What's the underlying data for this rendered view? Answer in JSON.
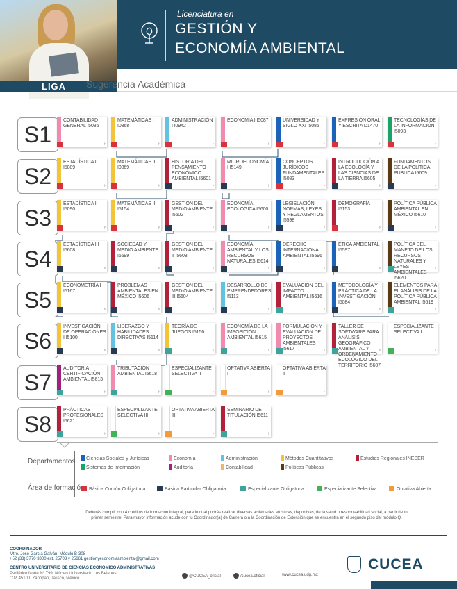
{
  "header": {
    "liga": "LIGA",
    "title_small": "Licenciatura en",
    "title_line1": "GESTIÓN Y",
    "title_line2": "ECONOMÍA AMBIENTAL",
    "subtitle": "Sugerencia Académica"
  },
  "colors": {
    "header_bg": "#1e4a63",
    "ciencias_sociales": "#1a63b8",
    "economia": "#f28ab0",
    "administracion": "#62c2e2",
    "metodos": "#f3c43a",
    "estudios_regionales": "#b3203a",
    "sistemas": "#1aa46a",
    "auditoria": "#a0207e",
    "contabilidad": "#f0b46a",
    "politicas": "#5a3a14",
    "basica_comun": "#d6333d",
    "basica_particular": "#273a52",
    "especializante_obligatoria": "#3ea39a",
    "especializante_selectiva": "#43b05a",
    "optativa": "#f19b3a"
  },
  "semesters": [
    "S1",
    "S2",
    "S3",
    "S4",
    "S5",
    "S6",
    "S7",
    "S8"
  ],
  "courses": [
    {
      "row": 0,
      "col": 0,
      "text": "CONTABILIDAD GENERAL I5086",
      "strip": "#f28ab0",
      "foot": "#d6333d"
    },
    {
      "row": 0,
      "col": 1,
      "text": "MATEMÁTICAS I I0868",
      "strip": "#f3c43a",
      "foot": "#d6333d"
    },
    {
      "row": 0,
      "col": 2,
      "text": "ADMINISTRACIÓN I I0942",
      "strip": "#62c2e2",
      "foot": "#d6333d"
    },
    {
      "row": 0,
      "col": 3,
      "text": "ECONOMÍA I I5087",
      "strip": "#f28ab0",
      "foot": "#d6333d"
    },
    {
      "row": 0,
      "col": 4,
      "text": "UNIVERSIDAD Y SIGLO XXI I5085",
      "strip": "#1a63b8",
      "foot": "#d6333d"
    },
    {
      "row": 0,
      "col": 5,
      "text": "EXPRESIÓN ORAL Y ESCRITA D1470",
      "strip": "#1a63b8",
      "foot": "#d6333d"
    },
    {
      "row": 0,
      "col": 6,
      "text": "TECNOLOGÍAS DE LA INFORMACIÓN I5093",
      "strip": "#1aa46a",
      "foot": "#d6333d"
    },
    {
      "row": 1,
      "col": 0,
      "text": "ESTADÍSTICA I I5089",
      "strip": "#f3c43a",
      "foot": "#d6333d"
    },
    {
      "row": 1,
      "col": 1,
      "text": "MATEMÁTICAS II I0869",
      "strip": "#f3c43a",
      "foot": "#d6333d"
    },
    {
      "row": 1,
      "col": 2,
      "text": "HISTORIA DEL PENSAMIENTO ECONÓMICO AMBIENTAL I5601",
      "strip": "#b3203a",
      "foot": "#273a52"
    },
    {
      "row": 1,
      "col": 3,
      "text": "MICROECONOMÍA I I5149",
      "strip": "#f28ab0",
      "foot": "#273a52"
    },
    {
      "row": 1,
      "col": 4,
      "text": "CONCEPTOS JURÍDICOS FUNDAMENTALES I5083",
      "strip": "#1a63b8",
      "foot": "#d6333d"
    },
    {
      "row": 1,
      "col": 5,
      "text": "INTRODUCCIÓN A LA ECOLOGÍA Y LAS CIENCIAS DE LA TIERRA I5605",
      "strip": "#b3203a",
      "foot": "#273a52"
    },
    {
      "row": 1,
      "col": 6,
      "text": "FUNDAMENTOS DE LA POLÍTICA PÚBLICA I5609",
      "strip": "#5a3a14",
      "foot": "#273a52"
    },
    {
      "row": 2,
      "col": 0,
      "text": "ESTADÍSTICA II I5090",
      "strip": "#f3c43a",
      "foot": "#d6333d"
    },
    {
      "row": 2,
      "col": 1,
      "text": "MATEMÁTICAS III I5154",
      "strip": "#f3c43a",
      "foot": "#d6333d"
    },
    {
      "row": 2,
      "col": 2,
      "text": "GESTIÓN DEL MEDIO AMBIENTE I5602",
      "strip": "#b3203a",
      "foot": "#273a52"
    },
    {
      "row": 2,
      "col": 3,
      "text": "ECONOMÍA ECOLÓGICA I5600",
      "strip": "#f28ab0",
      "foot": "#273a52"
    },
    {
      "row": 2,
      "col": 4,
      "text": "LEGISLACIÓN, NORMAS, LEYES Y REGLAMENTOS I5598",
      "strip": "#1a63b8",
      "foot": "#273a52"
    },
    {
      "row": 2,
      "col": 5,
      "text": "DEMOGRAFÍA I5153",
      "strip": "#b3203a",
      "foot": "#d6333d"
    },
    {
      "row": 2,
      "col": 6,
      "text": "POLÍTICA PÚBLICA AMBIENTAL EN MÉXICO I5610",
      "strip": "#5a3a14",
      "foot": "#273a52"
    },
    {
      "row": 3,
      "col": 0,
      "text": "ESTADÍSTICA III I5608",
      "strip": "#f3c43a",
      "foot": "#273a52"
    },
    {
      "row": 3,
      "col": 1,
      "text": "SOCIEDAD Y MEDIO AMBIENTE I5599",
      "strip": "#b3203a",
      "foot": "#273a52"
    },
    {
      "row": 3,
      "col": 2,
      "text": "GESTIÓN DEL MEDIO AMBIENTE II I5603",
      "strip": "#b3203a",
      "foot": "#273a52"
    },
    {
      "row": 3,
      "col": 3,
      "text": "ECONOMÍA AMBIENTAL Y LOS RECURSOS NATURALES I5614",
      "strip": "#f28ab0",
      "foot": "#273a52"
    },
    {
      "row": 3,
      "col": 4,
      "text": "DERECHO INTERNACIONAL AMBIENTAL I5596",
      "strip": "#1a63b8",
      "foot": "#273a52"
    },
    {
      "row": 3,
      "col": 5,
      "text": "ÉTICA AMBIENTAL I5597",
      "strip": "#1a63b8",
      "foot": "#273a52"
    },
    {
      "row": 3,
      "col": 6,
      "text": "POLÍTICA DEL MANEJO DE LOS RECURSOS NATURALES Y LEYES AMBIENTALES I5620",
      "strip": "#5a3a14",
      "foot": "#3ea39a"
    },
    {
      "row": 4,
      "col": 0,
      "text": "ECONOMETRÍA I I5167",
      "strip": "#f3c43a",
      "foot": "#273a52"
    },
    {
      "row": 4,
      "col": 1,
      "text": "PROBLEMAS AMBIENTALES EN MÉXICO I5606",
      "strip": "#b3203a",
      "foot": "#273a52"
    },
    {
      "row": 4,
      "col": 2,
      "text": "GESTIÓN DEL MEDIO AMBIENTE III I5604",
      "strip": "#b3203a",
      "foot": "#273a52"
    },
    {
      "row": 4,
      "col": 3,
      "text": "DESARROLLO DE EMPRENDEDORES I5113",
      "strip": "#62c2e2",
      "foot": "#273a52"
    },
    {
      "row": 4,
      "col": 4,
      "text": "EVALUACIÓN DEL IMPACTO AMBIENTAL I5616",
      "strip": "#b3203a",
      "foot": "#3ea39a"
    },
    {
      "row": 4,
      "col": 5,
      "text": "METODOLOGÍA Y PRÁCTICA DE LA INVESTIGACIÓN I5084",
      "strip": "#1a63b8",
      "foot": "#273a52"
    },
    {
      "row": 4,
      "col": 6,
      "text": "ELEMENTOS PARA EL ANÁLISIS DE LA POLÍTICA PÚBLICA AMBIENTAL I5619",
      "strip": "#5a3a14",
      "foot": "#3ea39a"
    },
    {
      "row": 5,
      "col": 0,
      "text": "INVESTIGACIÓN DE OPERACIONES I I5100",
      "strip": "#f3c43a",
      "foot": "#273a52"
    },
    {
      "row": 5,
      "col": 1,
      "text": "LIDERAZGO Y HABILIDADES DIRECTIVAS I5114",
      "strip": "#62c2e2",
      "foot": "#273a52"
    },
    {
      "row": 5,
      "col": 2,
      "text": "TEORÍA DE JUEGOS I5156",
      "strip": "#f3c43a",
      "foot": "#3ea39a"
    },
    {
      "row": 5,
      "col": 3,
      "text": "ECONOMÍA DE LA IMPOSICIÓN AMBIENTAL I5615",
      "strip": "#f28ab0",
      "foot": "#3ea39a"
    },
    {
      "row": 5,
      "col": 4,
      "text": "FORMULACIÓN Y EVALUACIÓN DE PROYECTOS AMBIENTALES I5617",
      "strip": "#f28ab0",
      "foot": "#3ea39a"
    },
    {
      "row": 5,
      "col": 5,
      "text": "TALLER DE SOFTWARE PARA ANÁLISIS GEOGRÁFICO AMBIENTAL Y ORDENAMIENTO ECOLÓGICO DEL TERRITORIO I5607",
      "strip": "#b3203a",
      "foot": "#3ea39a"
    },
    {
      "row": 5,
      "col": 6,
      "text": "ESPECIALIZANTE SELECTIVA I",
      "strip": "#ffffff",
      "foot": "#43b05a"
    },
    {
      "row": 6,
      "col": 0,
      "text": "AUDITORÍA CERTIFICACIÓN AMBIENTAL I5613",
      "strip": "#a0207e",
      "foot": "#3ea39a"
    },
    {
      "row": 6,
      "col": 1,
      "text": "TRIBUTACIÓN AMBIENTAL I5618",
      "strip": "#f28ab0",
      "foot": "#3ea39a"
    },
    {
      "row": 6,
      "col": 2,
      "text": "ESPECIALIZANTE SELECTIVA II",
      "strip": "#ffffff",
      "foot": "#43b05a"
    },
    {
      "row": 6,
      "col": 3,
      "text": "OPTATIVA ABIERTA I",
      "strip": "#ffffff",
      "foot": "#f19b3a"
    },
    {
      "row": 6,
      "col": 4,
      "text": "OPTATIVA ABIERTA II",
      "strip": "#ffffff",
      "foot": "#f19b3a"
    },
    {
      "row": 7,
      "col": 0,
      "text": "PRÁCTICAS PROFESIONALES I5621",
      "strip": "#b3203a",
      "foot": "#3ea39a"
    },
    {
      "row": 7,
      "col": 1,
      "text": "ESPECIALIZANTE SELECTIVA III",
      "strip": "#ffffff",
      "foot": "#43b05a"
    },
    {
      "row": 7,
      "col": 2,
      "text": "OPTATIVA ABIERTA III",
      "strip": "#ffffff",
      "foot": "#f19b3a"
    },
    {
      "row": 7,
      "col": 3,
      "text": "SEMINARIO DE TITULACIÓN I5611",
      "strip": "#b3203a",
      "foot": "#3ea39a"
    }
  ],
  "legend": {
    "departamentos_label": "Departamentos",
    "departamentos": [
      {
        "label": "Ciencias Sociales y Jurídicas",
        "color": "#1a63b8"
      },
      {
        "label": "Economía",
        "color": "#f28ab0"
      },
      {
        "label": "Administración",
        "color": "#62c2e2"
      },
      {
        "label": "Métodos Cuantitativos",
        "color": "#f3c43a"
      },
      {
        "label": "Estudios Regionales INESER",
        "color": "#b3203a"
      },
      {
        "label": "Sistemas de Información",
        "color": "#1aa46a"
      },
      {
        "label": "Auditoría",
        "color": "#a0207e"
      },
      {
        "label": "Contabilidad",
        "color": "#f0b46a"
      },
      {
        "label": "Políticas Públicas",
        "color": "#5a3a14"
      }
    ],
    "area_label": "Área de formación",
    "areas": [
      {
        "label": "Básica Común Obligatoria",
        "color": "#d6333d"
      },
      {
        "label": "Básica Particular Obligatoria",
        "color": "#273a52"
      },
      {
        "label": "Especializante Obligatoria",
        "color": "#3ea39a"
      },
      {
        "label": "Especializante Selectiva",
        "color": "#43b05a"
      },
      {
        "label": "Optativa Abierta",
        "color": "#f19b3a"
      }
    ]
  },
  "note": "Deberás cumplir con 4 créditos de formación integral, para lo cual podrás realizar diversas actividades artísticas, deportivas, de la salud o responsabilidad social, a partir de tu primer semestre. Para mayor información acude con tu Coordinador(a) de Carrera o a la Coordinación de Extensión que se encuentra en el segundo piso del módulo Q.",
  "footer": {
    "coord_title": "COORDINADOR",
    "coord_name": "Mtro. José García Galván, Módulo B-308",
    "coord_contact": "+52 (33) 3770 3300 ext. 25703 y 25661 gestionyeconomiaambiental@gmail.com",
    "centro": "CENTRO UNIVERSITARIO DE CIENCIAS ECONÓMICO ADMINISTRATIVAS",
    "addr1": "Periférico Norte N° 799, Núcleo Universitario Los Belenes,",
    "addr2": "C.P. 45100, Zapopan, Jalisco, México.",
    "twitter": "@CUCEA_oficial",
    "facebook": "/cucea.oficial",
    "web": "www.cucea.udg.mx",
    "logo": "CUCEA"
  }
}
